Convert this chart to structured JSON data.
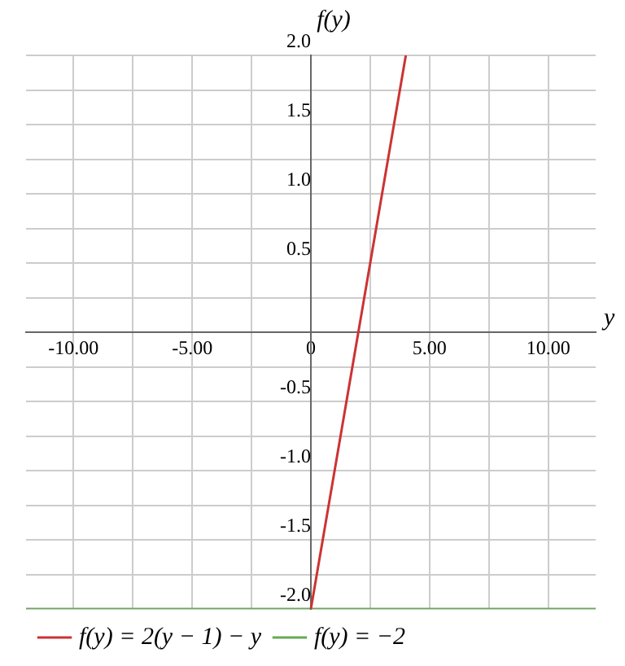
{
  "chart_data": {
    "type": "line",
    "xlabel": "y",
    "ylabel": "f(y)",
    "series": [
      {
        "name": "f(y) = 2(y − 1) − y",
        "color": "#cc3333",
        "x": [
          0,
          4
        ],
        "values": [
          -2,
          2
        ]
      },
      {
        "name": "f(y) = −2",
        "color": "#66aa55",
        "x": [
          -12,
          12
        ],
        "values": [
          -2,
          -2
        ]
      }
    ],
    "xlim": [
      -12,
      12
    ],
    "xticks": [
      {
        "value": -10,
        "label": "-10.00"
      },
      {
        "value": -7.5,
        "label": null
      },
      {
        "value": -5,
        "label": "-5.00"
      },
      {
        "value": -2.5,
        "label": null
      },
      {
        "value": 0,
        "label": "0"
      },
      {
        "value": 2.5,
        "label": null
      },
      {
        "value": 5,
        "label": "5.00"
      },
      {
        "value": 7.5,
        "label": null
      },
      {
        "value": 10,
        "label": "10.00"
      }
    ],
    "ylim": [
      -2,
      2
    ],
    "yticks": [
      {
        "value": -2,
        "label": "-2.0"
      },
      {
        "value": -1.75,
        "label": null
      },
      {
        "value": -1.5,
        "label": "-1.5"
      },
      {
        "value": -1.25,
        "label": null
      },
      {
        "value": -1,
        "label": "-1.0"
      },
      {
        "value": -0.75,
        "label": null
      },
      {
        "value": -0.5,
        "label": "-0.5"
      },
      {
        "value": -0.25,
        "label": null
      },
      {
        "value": 0,
        "label": null
      },
      {
        "value": 0.25,
        "label": null
      },
      {
        "value": 0.5,
        "label": "0.5"
      },
      {
        "value": 0.75,
        "label": null
      },
      {
        "value": 1,
        "label": "1.0"
      },
      {
        "value": 1.25,
        "label": null
      },
      {
        "value": 1.5,
        "label": "1.5"
      },
      {
        "value": 1.75,
        "label": null
      },
      {
        "value": 2,
        "label": "2.0"
      }
    ],
    "grid": true,
    "legend": "bottom",
    "marker": "none",
    "line_style": "solid"
  }
}
